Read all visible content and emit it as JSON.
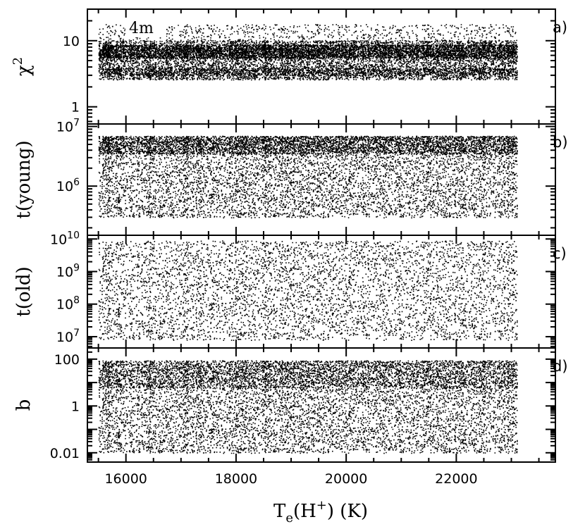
{
  "chart_data": {
    "type": "scatter",
    "xlabel": {
      "base": "T",
      "sub": "e",
      "paren_open": "(H",
      "sup": "+",
      "paren_close": ")",
      "unit": "(K)"
    },
    "xlim": [
      15300,
      23800
    ],
    "xticks": [
      "16000",
      "18000",
      "20000",
      "22000"
    ],
    "xtick_values": [
      16000,
      18000,
      20000,
      22000
    ],
    "sample_x_range": [
      15500,
      23100
    ],
    "grid": false,
    "panels": [
      {
        "label": "a)",
        "ylabel": {
          "base": "χ",
          "sup": "2"
        },
        "yscale": "log",
        "ylim": [
          0.55,
          30
        ],
        "yticks": [
          {
            "value": 1,
            "label": "1"
          },
          {
            "value": 10,
            "label": "10"
          }
        ],
        "annotation": "4m",
        "density_bands": [
          {
            "lo": 2.6,
            "hi": 10.2,
            "weight": 0.55
          },
          {
            "lo": 5.5,
            "hi": 8.8,
            "weight": 1.0
          },
          {
            "lo": 3.0,
            "hi": 3.9,
            "weight": 0.45
          },
          {
            "lo": 10.2,
            "hi": 18,
            "weight": 0.12
          }
        ]
      },
      {
        "label": "b)",
        "ylabel": {
          "base": "t(young)",
          "sup": ""
        },
        "yscale": "log",
        "ylim": [
          150000,
          11000000
        ],
        "yticks": [
          {
            "value": 1000000,
            "label": "10",
            "sup": "6"
          },
          {
            "value": 10000000,
            "label": "10",
            "sup": "7"
          }
        ],
        "density_bands": [
          {
            "lo": 300000,
            "hi": 3500000,
            "weight": 0.45
          },
          {
            "lo": 3500000,
            "hi": 7000000,
            "weight": 1.1
          }
        ]
      },
      {
        "label": "c)",
        "ylabel": {
          "base": "t(old)",
          "sup": ""
        },
        "yscale": "log",
        "ylim": [
          4500000,
          13000000000
        ],
        "yticks": [
          {
            "value": 10000000,
            "label": "10",
            "sup": "7"
          },
          {
            "value": 100000000,
            "label": "10",
            "sup": "8"
          },
          {
            "value": 1000000000,
            "label": "10",
            "sup": "9"
          },
          {
            "value": 10000000000,
            "label": "10",
            "sup": "10"
          }
        ],
        "density_bands": [
          {
            "lo": 8000000,
            "hi": 9000000000,
            "weight": 1.0
          }
        ]
      },
      {
        "label": "d)",
        "ylabel": {
          "base": "b",
          "sup": ""
        },
        "yscale": "log",
        "ylim": [
          0.004,
          300
        ],
        "yticks": [
          {
            "value": 0.01,
            "label": "0.01"
          },
          {
            "value": 1,
            "label": "1"
          },
          {
            "value": 100,
            "label": "100"
          }
        ],
        "density_bands": [
          {
            "lo": 0.01,
            "hi": 6,
            "weight": 0.45
          },
          {
            "lo": 6,
            "hi": 90,
            "weight": 1.1
          }
        ]
      }
    ]
  }
}
